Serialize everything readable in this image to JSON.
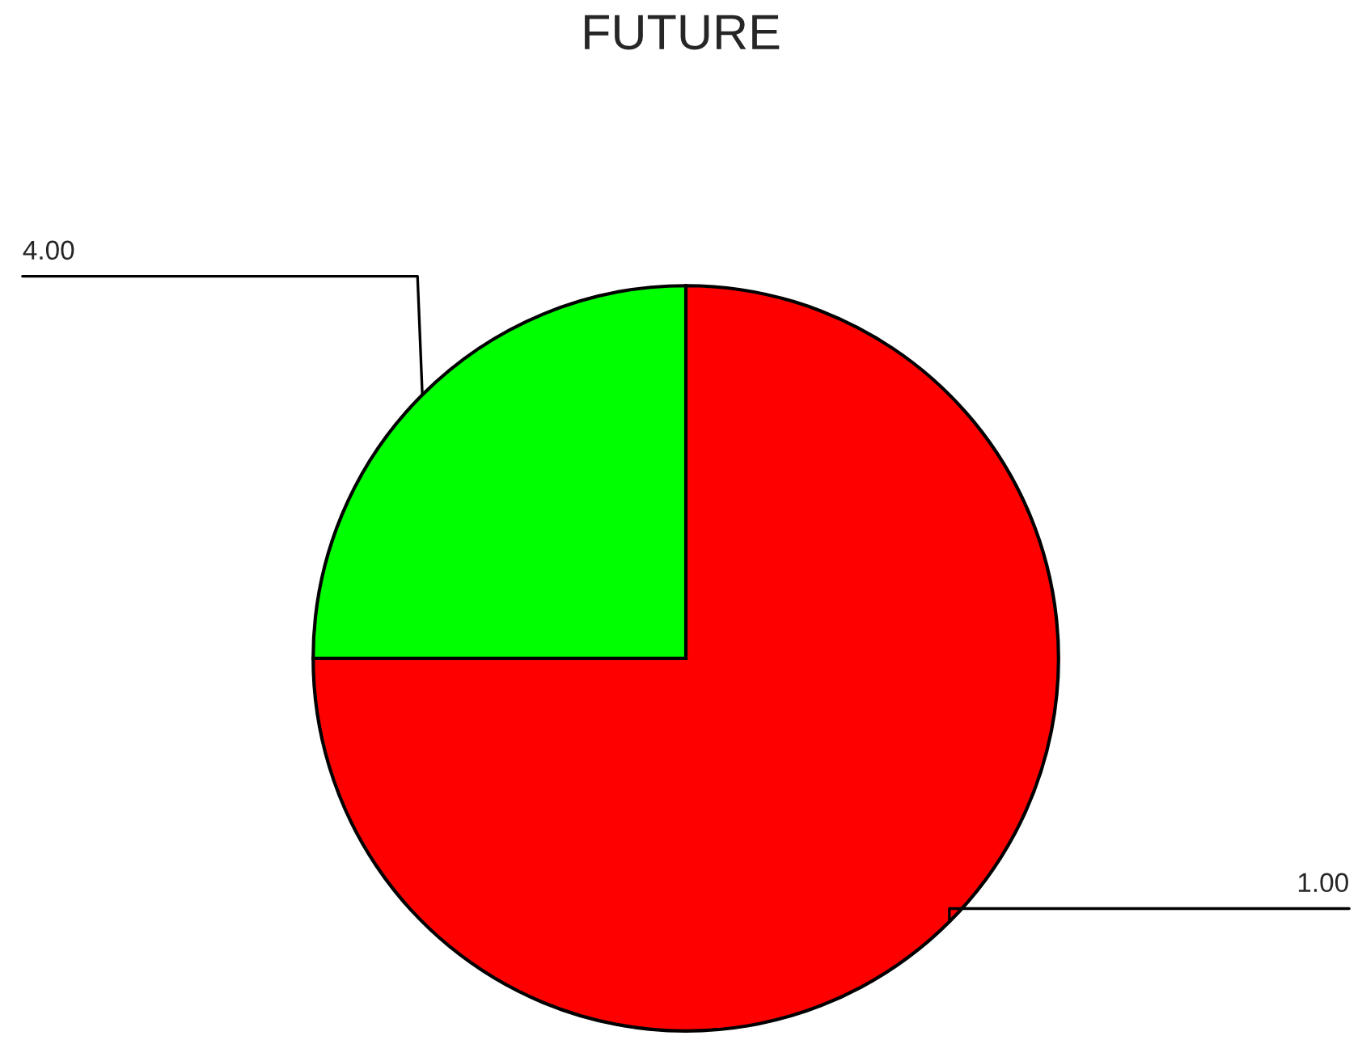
{
  "chart_data": {
    "type": "pie",
    "title": "FUTURE",
    "categories": [
      "1.00",
      "4.00"
    ],
    "values": [
      75,
      25
    ],
    "colors": [
      "#ff0000",
      "#00ff00"
    ]
  }
}
